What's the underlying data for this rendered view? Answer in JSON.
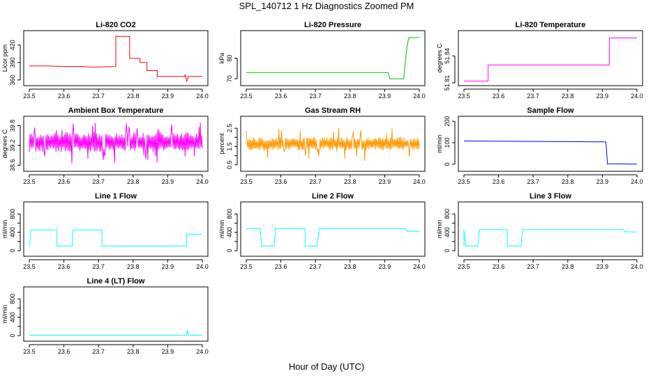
{
  "figure": {
    "title": "SPL_140712  1 Hz Diagnostics Zoomed PM",
    "xlabel": "Hour of Day (UTC)"
  },
  "chart_data": [
    {
      "type": "line",
      "title": "Li-820 CO2",
      "ylabel": "Licor ppm",
      "xlim": [
        23.5,
        24.0
      ],
      "ylim": [
        355,
        440
      ],
      "xticks": [
        "23.5",
        "23.6",
        "23.7",
        "23.8",
        "23.9",
        "24.0"
      ],
      "yticks": [
        360,
        390,
        420
      ],
      "color": "#ff0000",
      "series": [
        {
          "x": [
            23.5,
            23.55,
            23.6,
            23.65,
            23.69,
            23.69,
            23.75,
            23.75,
            23.79,
            23.79,
            23.82,
            23.82,
            23.84,
            23.84,
            23.87,
            23.87,
            23.95,
            23.95,
            23.955,
            23.96,
            23.97,
            24.0
          ],
          "y": [
            384,
            384,
            383,
            383,
            382,
            382,
            383,
            435,
            435,
            397,
            397,
            390,
            390,
            376,
            376,
            366,
            366,
            370,
            358,
            366,
            366,
            366
          ]
        }
      ]
    },
    {
      "type": "line",
      "title": "Li-820 Pressure",
      "ylabel": "kPa",
      "xlim": [
        23.5,
        24.0
      ],
      "ylim": [
        68,
        92
      ],
      "xticks": [
        "23.5",
        "23.6",
        "23.7",
        "23.8",
        "23.9",
        "24.0"
      ],
      "yticks": [
        70,
        80
      ],
      "color": "#00c000",
      "series": [
        {
          "x": [
            23.5,
            23.6,
            23.7,
            23.8,
            23.91,
            23.915,
            23.955,
            23.96,
            23.965,
            23.97,
            24.0
          ],
          "y": [
            73,
            73,
            73,
            73,
            73,
            70,
            70,
            79,
            86,
            90,
            90
          ]
        }
      ]
    },
    {
      "type": "line",
      "title": "Li-820 Temperature",
      "ylabel": "degrees C",
      "xlim": [
        23.5,
        24.0
      ],
      "ylim": [
        51.81,
        51.865
      ],
      "xticks": [
        "23.5",
        "23.6",
        "23.7",
        "23.8",
        "23.9",
        "24.0"
      ],
      "yticks": [
        51.81,
        51.84
      ],
      "ytick_labels": [
        "51.81",
        "51.84"
      ],
      "color": "#ff00ff",
      "series": [
        {
          "x": [
            23.5,
            23.57,
            23.57,
            23.62,
            23.65,
            23.7,
            23.8,
            23.88,
            23.92,
            23.92,
            24.0
          ],
          "y": [
            51.812,
            51.812,
            51.83,
            51.83,
            51.83,
            51.83,
            51.83,
            51.83,
            51.83,
            51.86,
            51.86
          ]
        }
      ]
    },
    {
      "type": "line",
      "title": "Ambient Box Temperature",
      "ylabel": "degrees C",
      "xlim": [
        23.5,
        24.0
      ],
      "ylim": [
        38.5,
        40.0
      ],
      "xticks": [
        "23.5",
        "23.6",
        "23.7",
        "23.8",
        "23.9",
        "24.0"
      ],
      "yticks": [
        38.6,
        39.2,
        39.8
      ],
      "ytick_labels": [
        "38.6",
        "39.2",
        "39.8"
      ],
      "color": "#ff00ff",
      "series": [
        {
          "x": [
            23.5,
            24.0
          ],
          "y": [
            39.0,
            39.6
          ],
          "band": true
        }
      ]
    },
    {
      "type": "line",
      "title": "Gas Stream RH",
      "ylabel": "percent",
      "xlim": [
        23.5,
        24.0
      ],
      "ylim": [
        0.3,
        3.0
      ],
      "xticks": [
        "23.5",
        "23.6",
        "23.7",
        "23.8",
        "23.9",
        "24.0"
      ],
      "yticks": [
        0.5,
        1.0,
        1.5,
        2.0,
        2.5
      ],
      "ytick_labels": [
        "0.5",
        "1.5",
        "2.5"
      ],
      "color": "#ff9900",
      "series": [
        {
          "x": [
            23.5,
            24.0
          ],
          "y": [
            1.3,
            2.0
          ],
          "band": true
        }
      ]
    },
    {
      "type": "line",
      "title": "Sample Flow",
      "ylabel": "ml/min",
      "xlim": [
        23.5,
        24.0
      ],
      "ylim": [
        -20,
        210
      ],
      "xticks": [
        "23.5",
        "23.6",
        "23.7",
        "23.8",
        "23.9",
        "24.0"
      ],
      "yticks": [
        0,
        100,
        200
      ],
      "color": "#0000ff",
      "series": [
        {
          "x": [
            23.5,
            23.6,
            23.7,
            23.8,
            23.91,
            23.915,
            23.92,
            24.0
          ],
          "y": [
            108,
            107,
            106,
            105,
            104,
            0,
            2,
            0
          ]
        }
      ]
    },
    {
      "type": "line",
      "title": "Line 1 Flow",
      "ylabel": "ml/min",
      "xlim": [
        23.5,
        24.0
      ],
      "ylim": [
        -60,
        1000
      ],
      "xticks": [
        "23.5",
        "23.6",
        "23.7",
        "23.8",
        "23.9",
        "24.0"
      ],
      "yticks": [
        0,
        200,
        400,
        600,
        800
      ],
      "ytick_labels": [
        "0",
        "400",
        "800"
      ],
      "color": "#00ffff",
      "series": [
        {
          "x": [
            23.5,
            23.505,
            23.58,
            23.58,
            23.625,
            23.625,
            23.71,
            23.71,
            23.955,
            23.955,
            24.0
          ],
          "y": [
            100,
            450,
            450,
            100,
            100,
            450,
            450,
            100,
            100,
            360,
            360
          ]
        }
      ]
    },
    {
      "type": "line",
      "title": "Line 2 Flow",
      "ylabel": "ml/min",
      "xlim": [
        23.5,
        24.0
      ],
      "ylim": [
        -60,
        1000
      ],
      "xticks": [
        "23.5",
        "23.6",
        "23.7",
        "23.8",
        "23.9",
        "24.0"
      ],
      "yticks": [
        0,
        200,
        400,
        600,
        800
      ],
      "ytick_labels": [
        "0",
        "400",
        "800"
      ],
      "color": "#00ffff",
      "series": [
        {
          "x": [
            23.5,
            23.54,
            23.545,
            23.58,
            23.585,
            23.67,
            23.67,
            23.705,
            23.71,
            23.96,
            23.965,
            24.0
          ],
          "y": [
            480,
            480,
            100,
            100,
            480,
            480,
            100,
            100,
            480,
            480,
            420,
            420
          ]
        }
      ]
    },
    {
      "type": "line",
      "title": "Line 3 Flow",
      "ylabel": "ml/min",
      "xlim": [
        23.5,
        24.0
      ],
      "ylim": [
        -60,
        1000
      ],
      "xticks": [
        "23.5",
        "23.6",
        "23.7",
        "23.8",
        "23.9",
        "24.0"
      ],
      "yticks": [
        0,
        200,
        400,
        600,
        800
      ],
      "ytick_labels": [
        "0",
        "400",
        "800"
      ],
      "color": "#00ffff",
      "series": [
        {
          "x": [
            23.5,
            23.5,
            23.505,
            23.54,
            23.545,
            23.625,
            23.625,
            23.665,
            23.67,
            23.96,
            23.965,
            24.0
          ],
          "y": [
            100,
            460,
            100,
            100,
            460,
            460,
            100,
            100,
            460,
            460,
            410,
            410
          ]
        }
      ]
    },
    {
      "type": "line",
      "title": "Line 4 (LT) Flow",
      "ylabel": "ml/min",
      "xlim": [
        23.5,
        24.0
      ],
      "ylim": [
        -60,
        1000
      ],
      "xticks": [
        "23.5",
        "23.6",
        "23.7",
        "23.8",
        "23.9",
        "24.0"
      ],
      "yticks": [
        0,
        200,
        400,
        600,
        800
      ],
      "ytick_labels": [
        "0",
        "400",
        "800"
      ],
      "color": "#00ffff",
      "series": [
        {
          "x": [
            23.5,
            23.955,
            23.957,
            23.96,
            24.0
          ],
          "y": [
            10,
            10,
            120,
            10,
            10
          ]
        }
      ]
    }
  ]
}
